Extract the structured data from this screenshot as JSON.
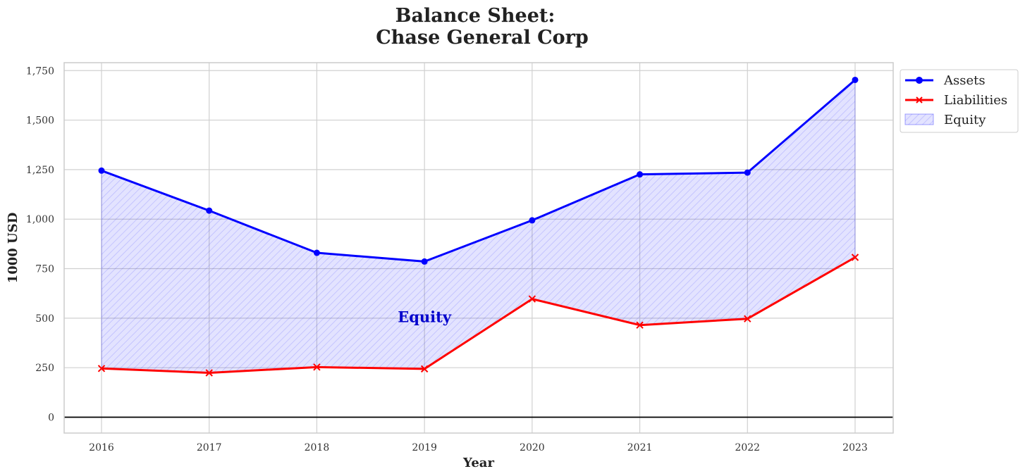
{
  "chart_data": {
    "type": "line",
    "title_lines": [
      "Balance Sheet:",
      "Chase General Corp"
    ],
    "xlabel": "Year",
    "ylabel": "1000 USD",
    "x": [
      "2016",
      "2017",
      "2018",
      "2019",
      "2020",
      "2021",
      "2022",
      "2023"
    ],
    "series": [
      {
        "name": "Assets",
        "values": [
          1245,
          1043,
          830,
          786,
          994,
          1226,
          1235,
          1703
        ],
        "color": "#0000ff",
        "marker": "circle"
      },
      {
        "name": "Liabilities",
        "values": [
          246,
          224,
          253,
          244,
          597,
          465,
          497,
          807
        ],
        "color": "#ff0000",
        "marker": "x"
      }
    ],
    "fill": {
      "name": "Equity",
      "between": [
        "Assets",
        "Liabilities"
      ],
      "color": "#0000ff",
      "hatch": "////"
    },
    "annotation": {
      "text": "Equity",
      "x": "2019",
      "y": 505,
      "color": "#0000cc"
    },
    "ylim": [
      -80,
      1790
    ],
    "yticks": [
      0,
      250,
      500,
      750,
      1000,
      1250,
      1500,
      1750
    ],
    "ytick_labels": [
      "0",
      "250",
      "500",
      "750",
      "1,000",
      "1,250",
      "1,500",
      "1,750"
    ],
    "grid": true,
    "zero_line": true,
    "legend": {
      "placement": "outside-top-right",
      "entries": [
        "Assets",
        "Liabilities",
        "Equity"
      ]
    }
  }
}
